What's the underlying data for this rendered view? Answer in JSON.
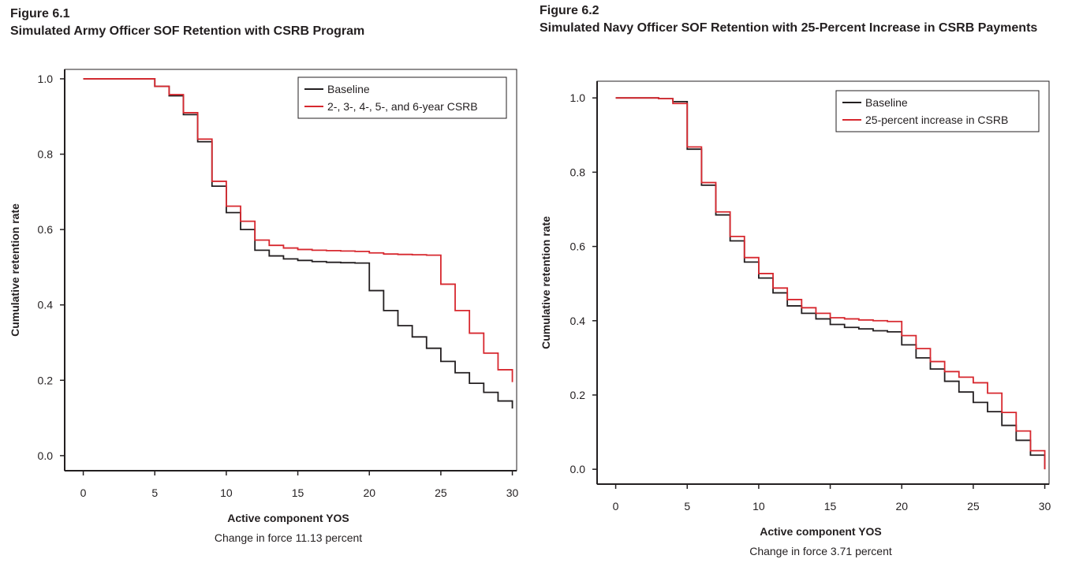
{
  "colors": {
    "baseline": "#231f20",
    "treatment": "#d7282f",
    "frame": "#231f20"
  },
  "chart_data": [
    {
      "type": "line",
      "figure_label": "Figure 6.1",
      "title": "Simulated Army Officer SOF Retention with CSRB Program",
      "xlabel": "Active component YOS",
      "ylabel": "Cumulative retention rate",
      "note": "Change in force 11.13 percent",
      "xlim": [
        -1.3,
        30.3
      ],
      "ylim": [
        -0.04,
        1.025
      ],
      "xticks": [
        0,
        5,
        10,
        15,
        20,
        25,
        30
      ],
      "yticks": [
        0.0,
        0.2,
        0.4,
        0.6,
        0.8,
        1.0
      ],
      "ytick_labels": [
        "0.0",
        "0.2",
        "0.4",
        "0.6",
        "0.8",
        "1.0"
      ],
      "legend_position": "top-right",
      "step": true,
      "series": [
        {
          "name": "Baseline",
          "color": "#231f20",
          "x": [
            0,
            5,
            6,
            7,
            8,
            9,
            10,
            11,
            12,
            13,
            14,
            15,
            16,
            17,
            18,
            19,
            20,
            21,
            22,
            23,
            24,
            25,
            26,
            27,
            28,
            29,
            30
          ],
          "y": [
            1.0,
            0.98,
            0.955,
            0.905,
            0.833,
            0.715,
            0.645,
            0.6,
            0.545,
            0.53,
            0.522,
            0.518,
            0.515,
            0.513,
            0.512,
            0.511,
            0.438,
            0.385,
            0.345,
            0.315,
            0.285,
            0.25,
            0.22,
            0.192,
            0.168,
            0.145,
            0.125
          ]
        },
        {
          "name": "2-, 3-, 4-, 5-, and 6-year CSRB",
          "color": "#d7282f",
          "x": [
            0,
            5,
            6,
            7,
            8,
            9,
            10,
            11,
            12,
            13,
            14,
            15,
            16,
            17,
            18,
            19,
            20,
            21,
            22,
            23,
            24,
            25,
            26,
            27,
            28,
            29,
            30
          ],
          "y": [
            1.0,
            0.98,
            0.958,
            0.91,
            0.84,
            0.728,
            0.662,
            0.622,
            0.572,
            0.558,
            0.551,
            0.547,
            0.545,
            0.544,
            0.543,
            0.542,
            0.538,
            0.535,
            0.534,
            0.533,
            0.532,
            0.455,
            0.385,
            0.325,
            0.272,
            0.228,
            0.195
          ]
        }
      ]
    },
    {
      "type": "line",
      "figure_label": "Figure 6.2",
      "title": "Simulated Navy Officer SOF Retention with 25-Percent Increase in CSRB Payments",
      "xlabel": "Active component YOS",
      "ylabel": "Cumulative retention rate",
      "note": "Change in force 3.71 percent",
      "xlim": [
        -1.3,
        30.3
      ],
      "ylim": [
        -0.04,
        1.045
      ],
      "xticks": [
        0,
        5,
        10,
        15,
        20,
        25,
        30
      ],
      "yticks": [
        0.0,
        0.2,
        0.4,
        0.6,
        0.8,
        1.0
      ],
      "ytick_labels": [
        "0.0",
        "0.2",
        "0.4",
        "0.6",
        "0.8",
        "1.0"
      ],
      "legend_position": "top-right",
      "step": true,
      "series": [
        {
          "name": "Baseline",
          "color": "#231f20",
          "x": [
            0,
            3,
            4,
            5,
            6,
            7,
            8,
            9,
            10,
            11,
            12,
            13,
            14,
            15,
            16,
            17,
            18,
            19,
            20,
            21,
            22,
            23,
            24,
            25,
            26,
            27,
            28,
            29,
            30
          ],
          "y": [
            1.0,
            0.998,
            0.99,
            0.862,
            0.765,
            0.685,
            0.615,
            0.558,
            0.515,
            0.475,
            0.44,
            0.42,
            0.405,
            0.39,
            0.382,
            0.378,
            0.373,
            0.37,
            0.335,
            0.3,
            0.27,
            0.237,
            0.208,
            0.18,
            0.155,
            0.118,
            0.078,
            0.038,
            0.0
          ]
        },
        {
          "name": "25-percent increase in CSRB",
          "color": "#d7282f",
          "x": [
            0,
            3,
            4,
            5,
            6,
            7,
            8,
            9,
            10,
            11,
            12,
            13,
            14,
            15,
            16,
            17,
            18,
            19,
            20,
            21,
            22,
            23,
            24,
            25,
            26,
            27,
            28,
            29,
            30
          ],
          "y": [
            1.0,
            0.998,
            0.985,
            0.868,
            0.772,
            0.693,
            0.627,
            0.57,
            0.527,
            0.488,
            0.457,
            0.435,
            0.42,
            0.408,
            0.405,
            0.402,
            0.4,
            0.398,
            0.36,
            0.325,
            0.29,
            0.263,
            0.248,
            0.233,
            0.205,
            0.153,
            0.103,
            0.05,
            0.0
          ]
        }
      ]
    }
  ]
}
